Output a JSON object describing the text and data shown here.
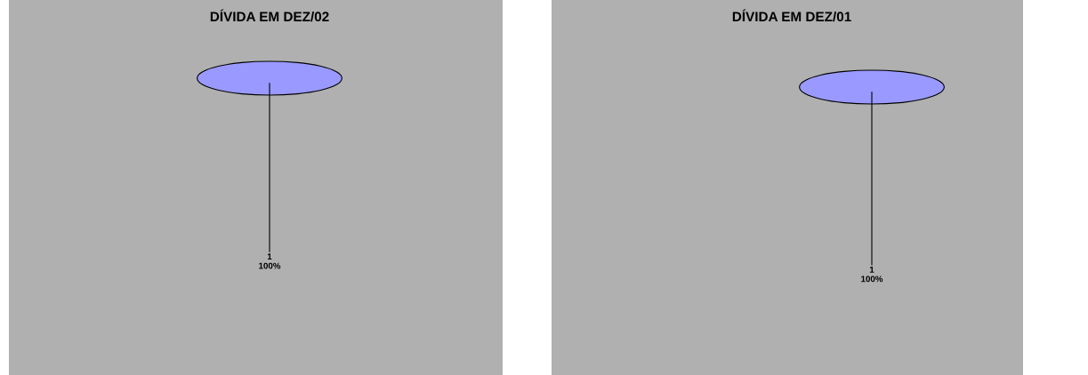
{
  "chart_data": [
    {
      "type": "pie",
      "title": "DÍVIDA EM DEZ/02",
      "categories": [
        "1"
      ],
      "values": [
        100
      ],
      "colors": [
        "#9999ff"
      ],
      "value_labels": [
        "100%"
      ]
    },
    {
      "type": "pie",
      "title": "DÍVIDA EM DEZ/01",
      "categories": [
        "1"
      ],
      "values": [
        100
      ],
      "colors": [
        "#9999ff"
      ],
      "value_labels": [
        "100%"
      ]
    }
  ]
}
